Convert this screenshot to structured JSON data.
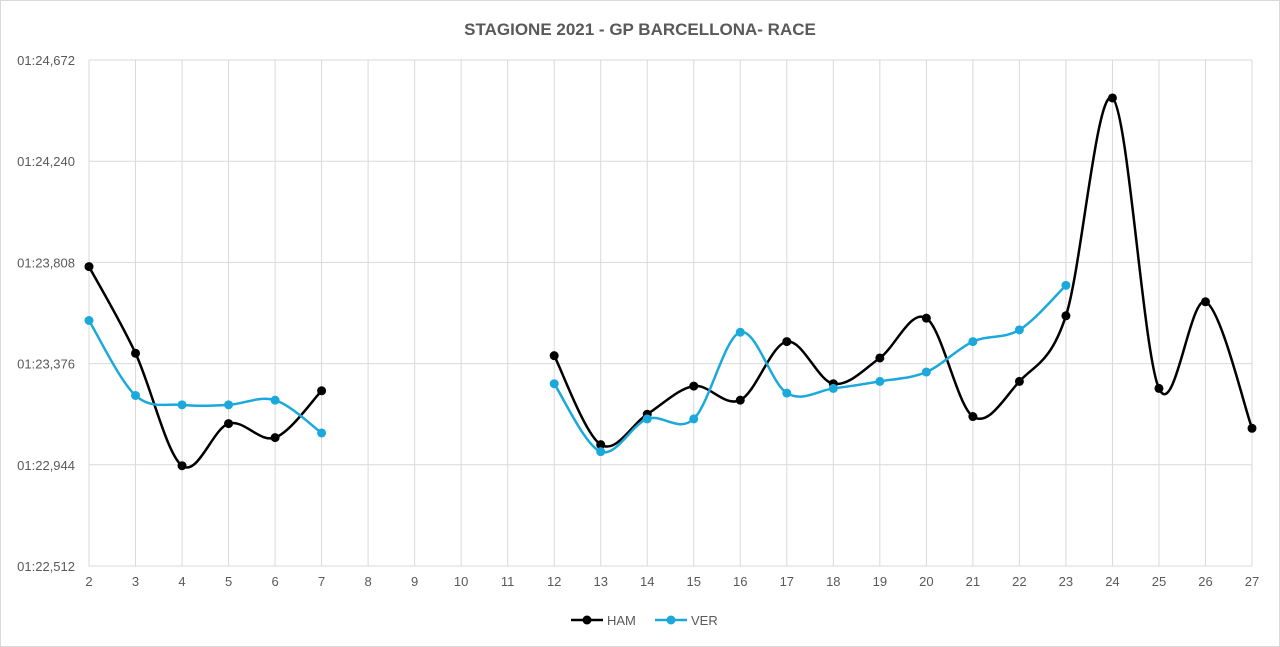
{
  "chart_data": {
    "type": "line",
    "title": "STAGIONE 2021 - GP BARCELLONA- RACE",
    "xlabel": "",
    "ylabel": "",
    "categories": [
      "2",
      "3",
      "4",
      "5",
      "6",
      "7",
      "8",
      "9",
      "10",
      "11",
      "12",
      "13",
      "14",
      "15",
      "16",
      "17",
      "18",
      "19",
      "20",
      "21",
      "22",
      "23",
      "24",
      "25",
      "26",
      "27"
    ],
    "y_ticks": [
      {
        "value": 82.512,
        "label": "01:22,512"
      },
      {
        "value": 82.944,
        "label": "01:22,944"
      },
      {
        "value": 83.376,
        "label": "01:23,376"
      },
      {
        "value": 83.808,
        "label": "01:23,808"
      },
      {
        "value": 84.24,
        "label": "01:24,240"
      },
      {
        "value": 84.672,
        "label": "01:24,672"
      }
    ],
    "ylim": [
      82.512,
      84.672
    ],
    "grid": true,
    "smooth": true,
    "legend_position": "bottom",
    "series": [
      {
        "name": "HAM",
        "color": "#000000",
        "values": [
          83.79,
          83.42,
          82.94,
          83.12,
          83.06,
          83.26,
          null,
          null,
          null,
          null,
          83.41,
          83.03,
          83.16,
          83.28,
          83.22,
          83.47,
          83.29,
          83.4,
          83.57,
          83.15,
          83.3,
          83.58,
          84.51,
          83.27,
          83.64,
          83.1
        ]
      },
      {
        "name": "VER",
        "color": "#1ba9dc",
        "values": [
          83.56,
          83.24,
          83.2,
          83.2,
          83.22,
          83.08,
          null,
          null,
          null,
          null,
          83.29,
          83.0,
          83.14,
          83.14,
          83.51,
          83.25,
          83.27,
          83.3,
          83.34,
          83.47,
          83.52,
          83.71,
          null,
          null,
          null,
          null
        ]
      }
    ]
  }
}
